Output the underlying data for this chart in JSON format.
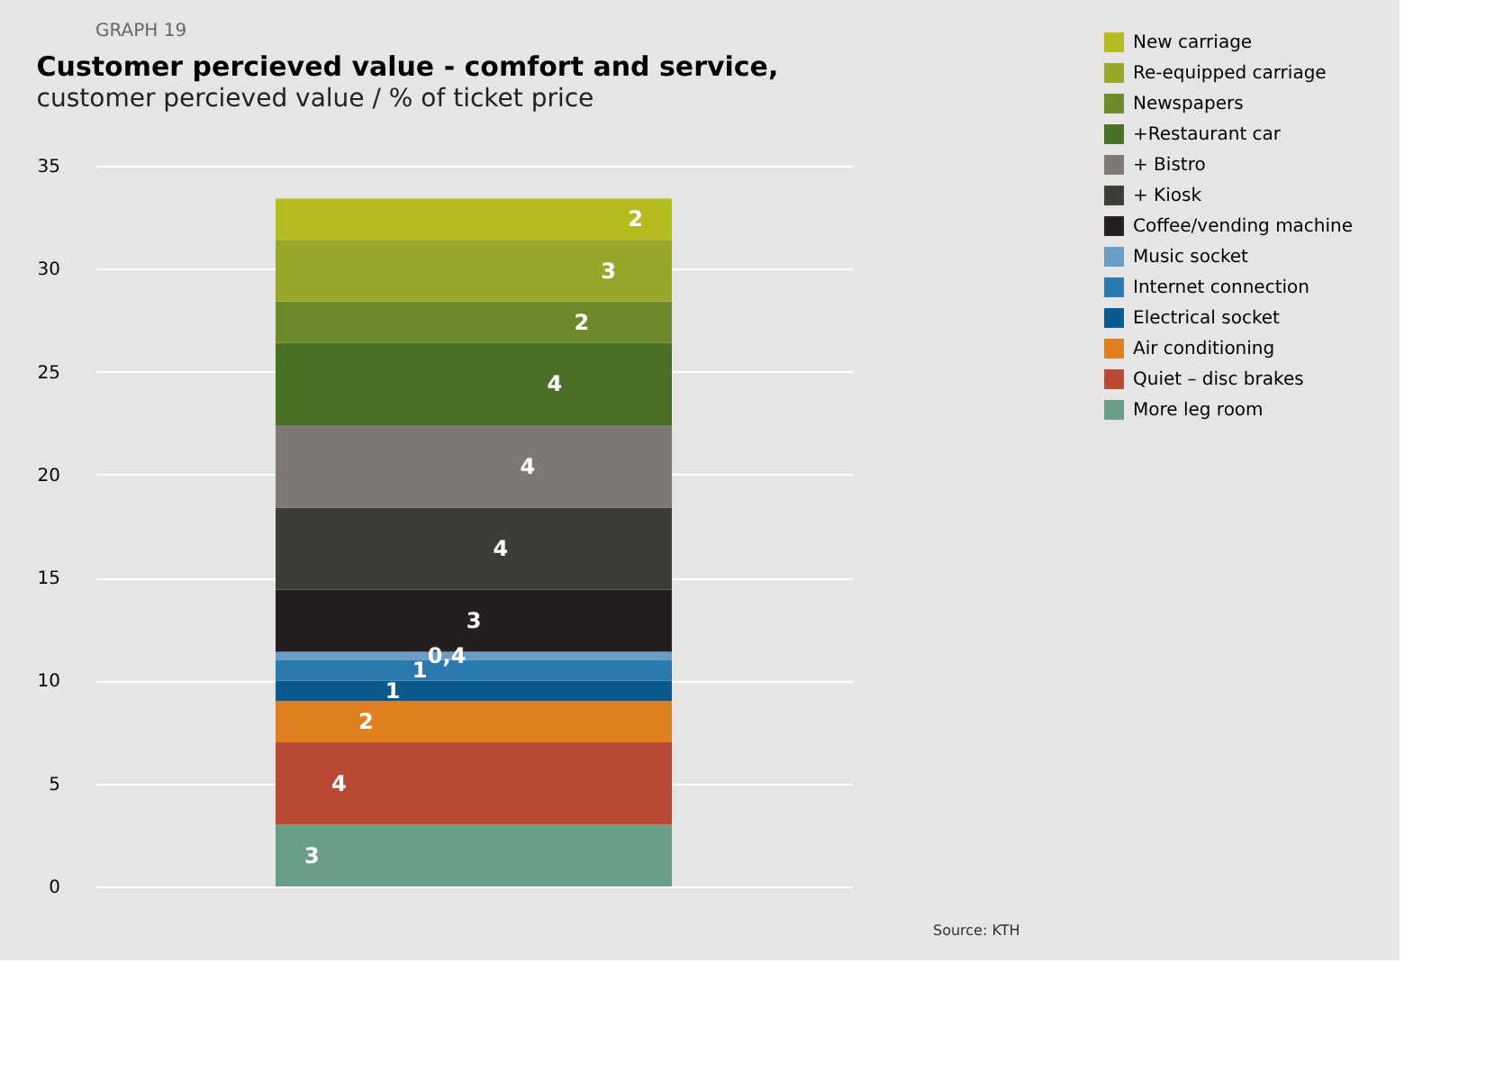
{
  "chart_data": {
    "type": "bar",
    "stacked": true,
    "title": "Customer percieved value - comfort and service,",
    "subtitle": "customer percieved value / % of ticket price",
    "annotations": [
      "GRAPH 19",
      "Source: KTH"
    ],
    "categories": [
      null
    ],
    "series": [
      {
        "name": "More leg room",
        "color": "#6a9e88",
        "values": [
          3
        ],
        "value_labels": [
          "3"
        ]
      },
      {
        "name": "Quiet – disc brakes",
        "color": "#b84a35",
        "values": [
          4
        ],
        "value_labels": [
          "4"
        ]
      },
      {
        "name": "Air conditioning",
        "color": "#e07f20",
        "values": [
          2
        ],
        "value_labels": [
          "2"
        ]
      },
      {
        "name": "Electrical socket",
        "color": "#0a5a8e",
        "values": [
          1
        ],
        "value_labels": [
          "1"
        ]
      },
      {
        "name": "Internet connection",
        "color": "#2a7ab0",
        "values": [
          1
        ],
        "value_labels": [
          "1"
        ]
      },
      {
        "name": "Music socket",
        "color": "#6a9cc8",
        "values": [
          0.4
        ],
        "value_labels": [
          "0,4"
        ]
      },
      {
        "name": "Coffee/vending machine",
        "color": "#231f20",
        "values": [
          3
        ],
        "value_labels": [
          "3"
        ]
      },
      {
        "name": "+ Kiosk",
        "color": "#3e3c38",
        "values": [
          4
        ],
        "value_labels": [
          "4"
        ]
      },
      {
        "name": "+ Bistro",
        "color": "#7d7a76",
        "values": [
          4
        ],
        "value_labels": [
          "4"
        ]
      },
      {
        "name": "+Restaurant car",
        "color": "#4a7025",
        "values": [
          4
        ],
        "value_labels": [
          "4"
        ]
      },
      {
        "name": "Newspapers",
        "color": "#6b8a2a",
        "values": [
          2
        ],
        "value_labels": [
          "2"
        ]
      },
      {
        "name": "Re-equipped carriage",
        "color": "#98a72a",
        "values": [
          3
        ],
        "value_labels": [
          "3"
        ]
      },
      {
        "name": "New carriage",
        "color": "#b5bd1e",
        "values": [
          2
        ],
        "value_labels": [
          "2"
        ]
      }
    ],
    "ylim": [
      0,
      35
    ],
    "yticks": [
      0,
      5,
      10,
      15,
      20,
      25,
      30,
      35
    ],
    "grid": "y",
    "legend": "right",
    "tick_labels": "y"
  }
}
